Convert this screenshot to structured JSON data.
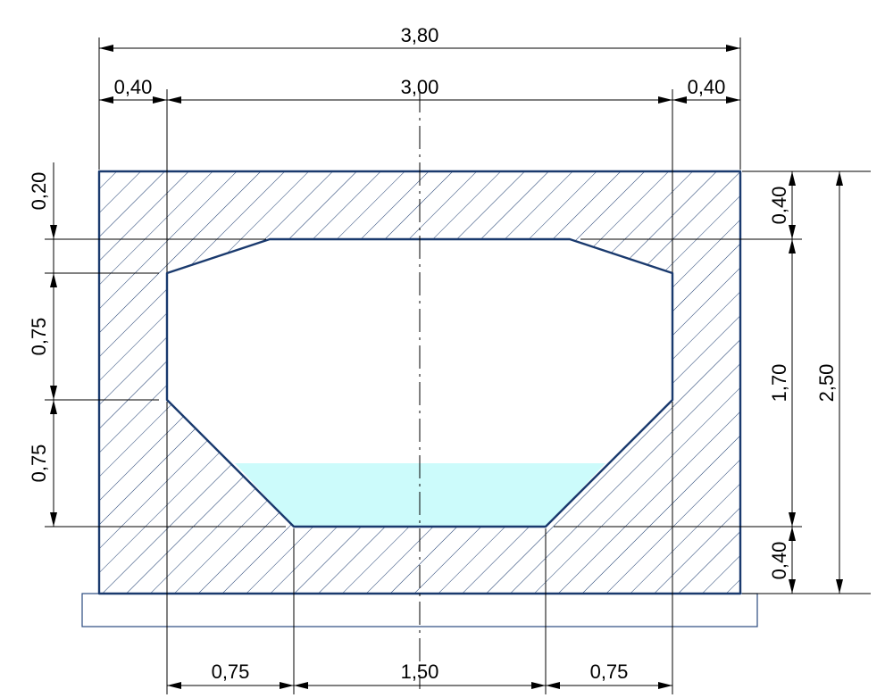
{
  "colors": {
    "outline": "#1a3a6e",
    "hatch": "#1a3a6e",
    "water": "#ccfbfb",
    "foundation": "#2a4a7e",
    "dimension": "#000000"
  },
  "dimensions": {
    "total_width": "3,80",
    "left_wall": "0,40",
    "inner_width": "3,00",
    "right_wall": "0,40",
    "left_top_offset": "0,20",
    "left_mid_height": "0,75",
    "left_low_height": "0,75",
    "right_top_slab": "0,40",
    "right_inner_height": "1,70",
    "right_total_height": "2,50",
    "right_bottom_slab": "0,40",
    "bottom_left_chamfer": "0,75",
    "bottom_width": "1,50",
    "bottom_right_chamfer": "0,75"
  }
}
